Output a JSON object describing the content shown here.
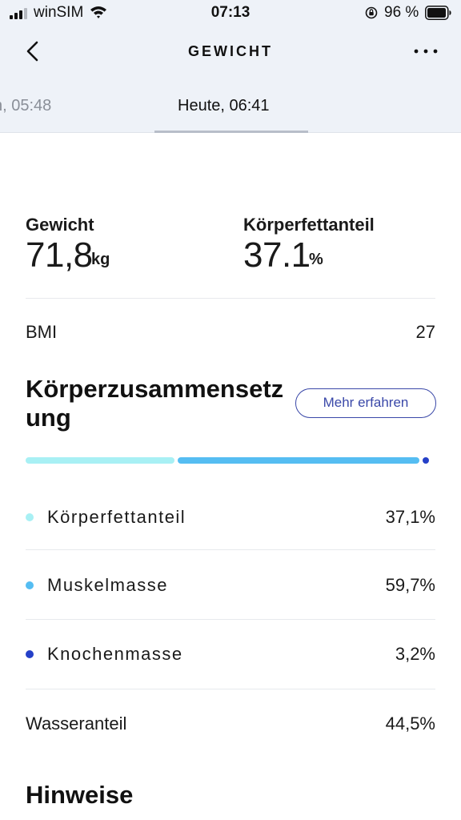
{
  "status_bar": {
    "carrier": "winSIM",
    "time": "07:13",
    "battery_percent": "96 %",
    "battery_level": 0.96,
    "signal_bars_active": 3
  },
  "nav": {
    "title": "GEWICHT",
    "back_icon": "chevron-left-icon",
    "more_icon": "more-horizontal-icon"
  },
  "date_tabs": {
    "previous": "n, 05:48",
    "active": "Heute, 06:41"
  },
  "metrics": {
    "weight": {
      "label": "Gewicht",
      "value": "71,8",
      "unit": "kg"
    },
    "body_fat": {
      "label": "Körperfettanteil",
      "value": "37.1",
      "unit": "%"
    }
  },
  "bmi": {
    "label": "BMI",
    "value": "27"
  },
  "composition": {
    "heading": "Körperzusammensetzung",
    "more_button": "Mehr erfahren",
    "items": [
      {
        "label": "Körperfettanteil",
        "value": "37,1%",
        "fraction": 0.371,
        "color": "#a8f0f4"
      },
      {
        "label": "Muskelmasse",
        "value": "59,7%",
        "fraction": 0.597,
        "color": "#55bdf2"
      },
      {
        "label": "Knochenmasse",
        "value": "3,2%",
        "fraction": 0.032,
        "color": "#2540c8"
      }
    ]
  },
  "water": {
    "label": "Wasseranteil",
    "value": "44,5%"
  },
  "notes": {
    "heading": "Hinweise"
  }
}
